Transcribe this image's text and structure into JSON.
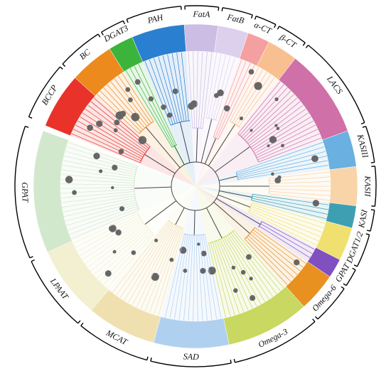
{
  "clades": [
    {
      "label": "BCCP"
    },
    {
      "label": "BC"
    },
    {
      "label": "DGAT3"
    },
    {
      "label": "PAH"
    },
    {
      "label": "FatA"
    },
    {
      "label": "FatB"
    },
    {
      "label": "α-CT"
    },
    {
      "label": "β-CT"
    },
    {
      "label": "LACS"
    },
    {
      "label": "KASIII"
    },
    {
      "label": "KASII"
    },
    {
      "label": "KASI"
    },
    {
      "label": "DGAT1/2"
    },
    {
      "label": "GPAT"
    },
    {
      "label": "Omega-6"
    },
    {
      "label": "Omega-3"
    },
    {
      "label": "SAD"
    },
    {
      "label": "MCAT"
    },
    {
      "label": "LPAAT"
    },
    {
      "label": "GPAT"
    }
  ]
}
